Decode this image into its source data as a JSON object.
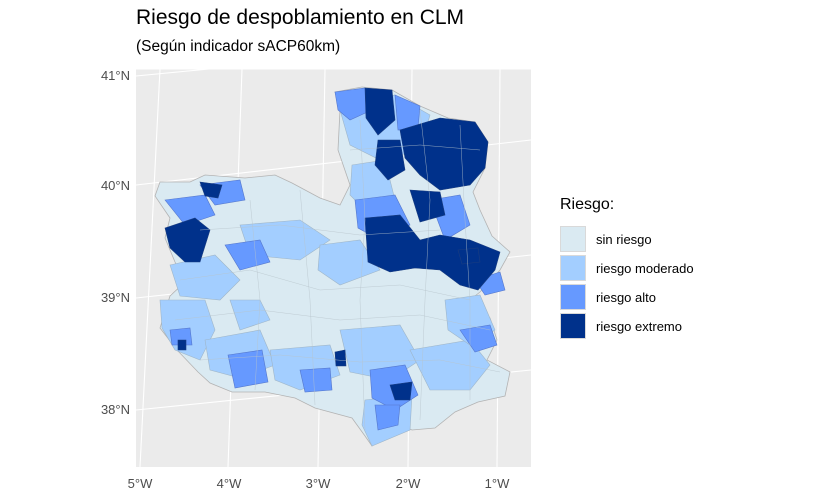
{
  "title": "Riesgo de despoblamiento en CLM",
  "subtitle": "(Según indicador sACP60km)",
  "axes": {
    "lat_labels": [
      "41°N",
      "40°N",
      "39°N",
      "38°N"
    ],
    "lon_labels": [
      "5°W",
      "4°W",
      "3°W",
      "2°W",
      "1°W"
    ]
  },
  "legend": {
    "title": "Riesgo:",
    "items": [
      {
        "label": "sin riesgo",
        "color": "#daeaf2"
      },
      {
        "label": "riesgo moderado",
        "color": "#a3ceff"
      },
      {
        "label": "riesgo alto",
        "color": "#6699ff"
      },
      {
        "label": "riesgo extremo",
        "color": "#00318b"
      }
    ]
  },
  "colors": {
    "panel_background": "#ebebeb",
    "gridline": "#ffffff",
    "border": "#b3b3b3"
  }
}
